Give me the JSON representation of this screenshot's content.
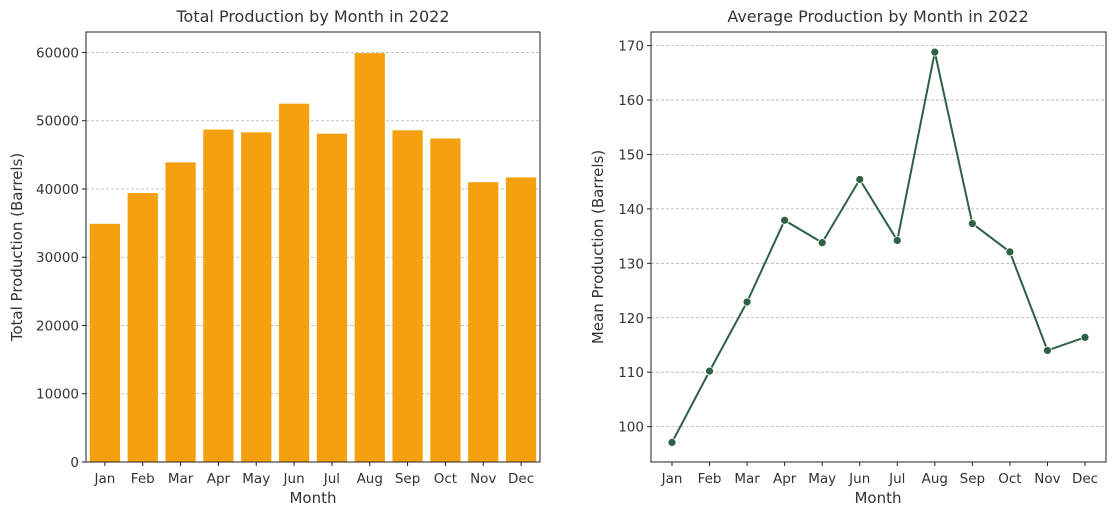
{
  "chart_data": [
    {
      "type": "bar",
      "title": "Total Production by Month in 2022",
      "xlabel": "Month",
      "ylabel": "Total Production (Barrels)",
      "categories": [
        "Jan",
        "Feb",
        "Mar",
        "Apr",
        "May",
        "Jun",
        "Jul",
        "Aug",
        "Sep",
        "Oct",
        "Nov",
        "Dec"
      ],
      "values": [
        34900,
        39400,
        43900,
        48700,
        48300,
        52500,
        48100,
        59900,
        48600,
        47400,
        41000,
        41700
      ],
      "ylim": [
        0,
        63000
      ],
      "yticks": [
        0,
        10000,
        20000,
        30000,
        40000,
        50000,
        60000
      ],
      "grid": "horizontal dashed",
      "color": "#f5a00f"
    },
    {
      "type": "line",
      "title": "Average Production by Month in 2022",
      "xlabel": "Month",
      "ylabel": "Mean Production (Barrels)",
      "categories": [
        "Jan",
        "Feb",
        "Mar",
        "Apr",
        "May",
        "Jun",
        "Jul",
        "Aug",
        "Sep",
        "Oct",
        "Nov",
        "Dec"
      ],
      "values": [
        97.1,
        110.2,
        122.9,
        137.9,
        133.8,
        145.4,
        134.2,
        168.8,
        137.3,
        132.1,
        114.0,
        116.4
      ],
      "ylim": [
        93.5,
        172.5
      ],
      "yticks": [
        100,
        110,
        120,
        130,
        140,
        150,
        160,
        170
      ],
      "grid": "horizontal dashed",
      "color": "#2d6045"
    }
  ]
}
